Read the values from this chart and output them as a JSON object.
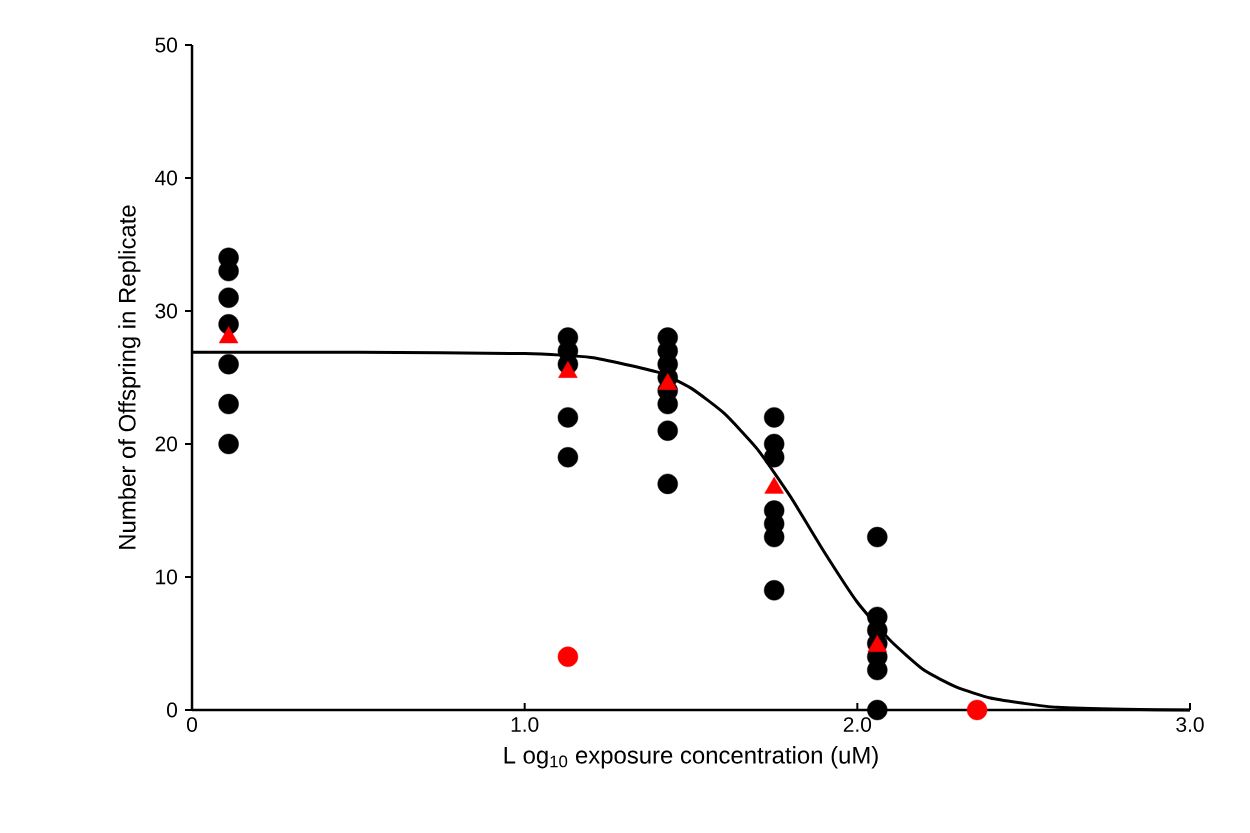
{
  "chart_data": {
    "type": "scatter",
    "xlabel": "L og$_{10}$ exposure concentration (uM)",
    "ylabel": "Number of  Offspring in Replicate",
    "xlim": [
      0,
      3
    ],
    "ylim": [
      0,
      50
    ],
    "xticks": [
      0,
      {
        "value": 1,
        "label": "1.0"
      },
      {
        "value": 2,
        "label": "2.0"
      },
      {
        "value": 3,
        "label": "3.0"
      }
    ],
    "yticks": [
      0,
      10,
      20,
      30,
      40,
      50
    ],
    "grid": false,
    "series": [
      {
        "marker": "circle",
        "color": "#000000",
        "x": [
          0.11,
          0.11,
          0.11,
          0.11,
          0.11,
          0.11,
          0.11,
          1.13,
          1.13,
          1.13,
          1.13,
          1.13,
          1.43,
          1.43,
          1.43,
          1.43,
          1.43,
          1.43,
          1.43,
          1.43,
          1.75,
          1.75,
          1.75,
          1.75,
          1.75,
          1.75,
          1.75,
          2.06,
          2.06,
          2.06,
          2.06,
          2.06,
          2.06,
          2.06
        ],
        "values": [
          34,
          33,
          31,
          29,
          26,
          23,
          20,
          28,
          27,
          26,
          22,
          19,
          28,
          27,
          26,
          25,
          24,
          23,
          21,
          17,
          22,
          20,
          19,
          15,
          14,
          13,
          9,
          13,
          7,
          6,
          5,
          4,
          3,
          0
        ]
      },
      {
        "marker": "circle",
        "color": "#ff0000",
        "x": [
          1.13,
          2.36
        ],
        "values": [
          4,
          0
        ]
      },
      {
        "type": "line",
        "marker": "none",
        "color": "#000000",
        "x": [
          0,
          0.5,
          1.0,
          1.2,
          1.4,
          1.5,
          1.6,
          1.7,
          1.8,
          1.9,
          2.0,
          2.1,
          2.2,
          2.3,
          2.4,
          2.5,
          2.6,
          2.8,
          3.0
        ],
        "values": [
          26.9,
          26.9,
          26.8,
          26.5,
          25.4,
          24.2,
          22.3,
          19.6,
          16.0,
          11.9,
          8.1,
          5.2,
          3.0,
          1.7,
          0.9,
          0.5,
          0.2,
          0.05,
          0
        ]
      },
      {
        "marker": "triangle",
        "color": "#ff0000",
        "x": [
          0.11,
          1.13,
          1.43,
          1.75,
          2.06
        ],
        "values": [
          28,
          25.4,
          24.5,
          16.7,
          4.8
        ]
      }
    ]
  }
}
